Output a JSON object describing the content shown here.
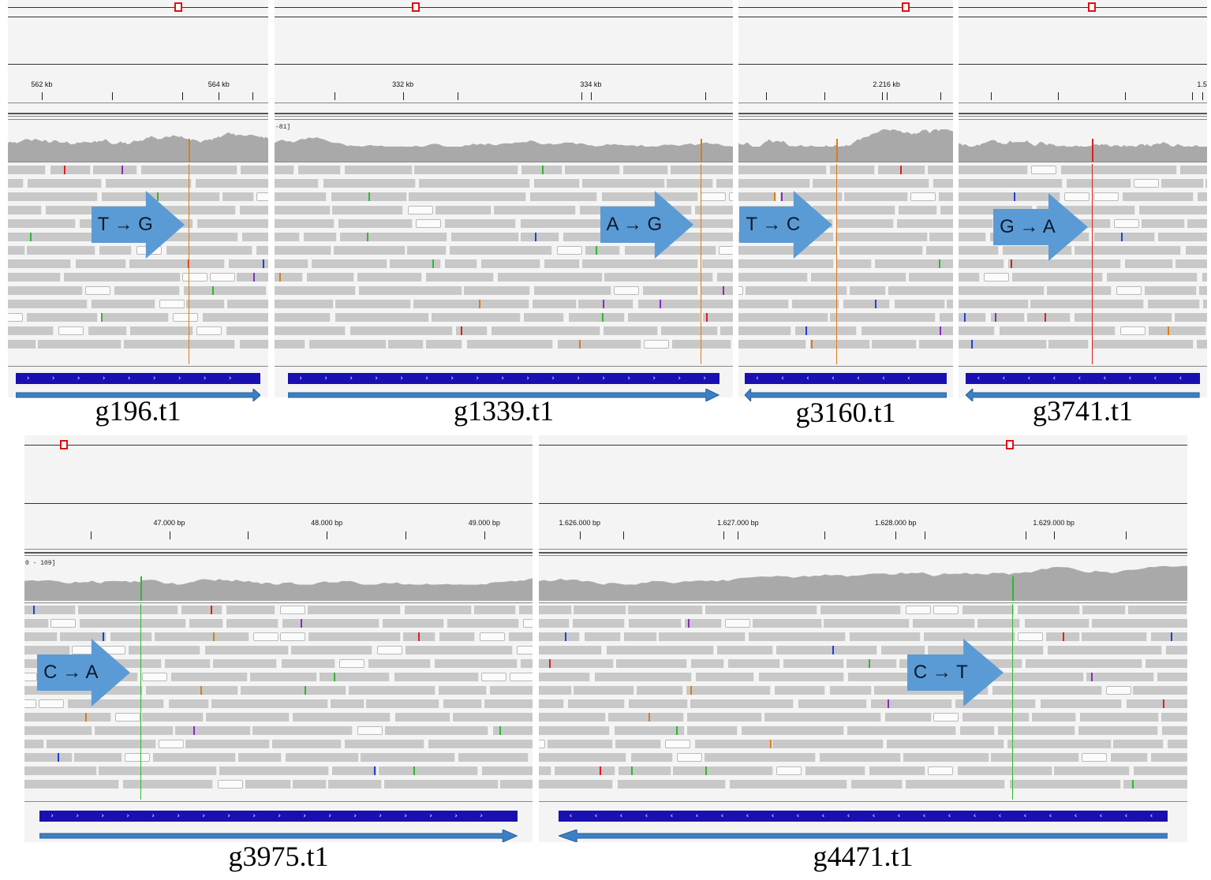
{
  "colors": {
    "read": "#c8c8c8",
    "read_outline": "#fbfbfb",
    "coverage": "#a9a9a9",
    "gene": "#1a0fb0",
    "strand_arrow": "#3d7fc4",
    "callout_arrow": "#5b9bd5",
    "locator": "#e31010",
    "mismatch_A": "#2eb82e",
    "mismatch_C": "#1f3fd6",
    "mismatch_G": "#d97d17",
    "mismatch_T": "#d92020"
  },
  "icons": {
    "locator": "red-square-locator-icon",
    "callout": "right-block-arrow-icon",
    "strand": "strand-arrow-icon"
  },
  "panels": [
    {
      "id": "g196",
      "gene_name": "g196.t1",
      "mutation": "T → G",
      "mutation_from": "T",
      "mutation_to": "G",
      "strand": "forward",
      "scale_label": "",
      "ruler": [
        {
          "label": "562 kb",
          "pos": 0.13
        },
        {
          "label": "564 kb",
          "pos": 0.81
        }
      ],
      "snp_color": "#d97d17"
    },
    {
      "id": "g1339",
      "gene_name": "g1339.t1",
      "mutation": "A → G",
      "mutation_from": "A",
      "mutation_to": "G",
      "strand": "forward",
      "scale_label": "-81]",
      "ruler": [
        {
          "label": "332 kb",
          "pos": 0.28
        },
        {
          "label": "334 kb",
          "pos": 0.69
        }
      ],
      "snp_color": "#d97d17"
    },
    {
      "id": "g3160",
      "gene_name": "g3160.t1",
      "mutation": "T → C",
      "mutation_from": "T",
      "mutation_to": "C",
      "strand": "reverse",
      "scale_label": "",
      "ruler": [
        {
          "label": "2.216 kb",
          "pos": 0.69
        }
      ],
      "snp_color": "#d97d17"
    },
    {
      "id": "g3741",
      "gene_name": "g3741.t1",
      "mutation": "G → A",
      "mutation_from": "G",
      "mutation_to": "A",
      "strand": "reverse",
      "scale_label": "",
      "ruler": [
        {
          "label": "1.5",
          "pos": 0.98
        }
      ],
      "snp_color": "#d92020"
    },
    {
      "id": "g3975",
      "gene_name": "g3975.t1",
      "mutation": "C → A",
      "mutation_from": "C",
      "mutation_to": "A",
      "strand": "forward",
      "scale_label": "0 - 109]",
      "ruler": [
        {
          "label": "47.000 bp",
          "pos": 0.285
        },
        {
          "label": "48.000 bp",
          "pos": 0.595
        },
        {
          "label": "49.000 bp",
          "pos": 0.905
        }
      ],
      "snp_color": "#2eb82e"
    },
    {
      "id": "g4471",
      "gene_name": "g4471.t1",
      "mutation": "C → T",
      "mutation_from": "C",
      "mutation_to": "T",
      "strand": "reverse",
      "scale_label": "",
      "ruler": [
        {
          "label": "1.626.000 bp",
          "pos": 0.063
        },
        {
          "label": "1.627.000 bp",
          "pos": 0.307
        },
        {
          "label": "1.628.000 bp",
          "pos": 0.55
        },
        {
          "label": "1.629.000 bp",
          "pos": 0.794
        }
      ],
      "snp_color": "#2eb82e"
    }
  ]
}
